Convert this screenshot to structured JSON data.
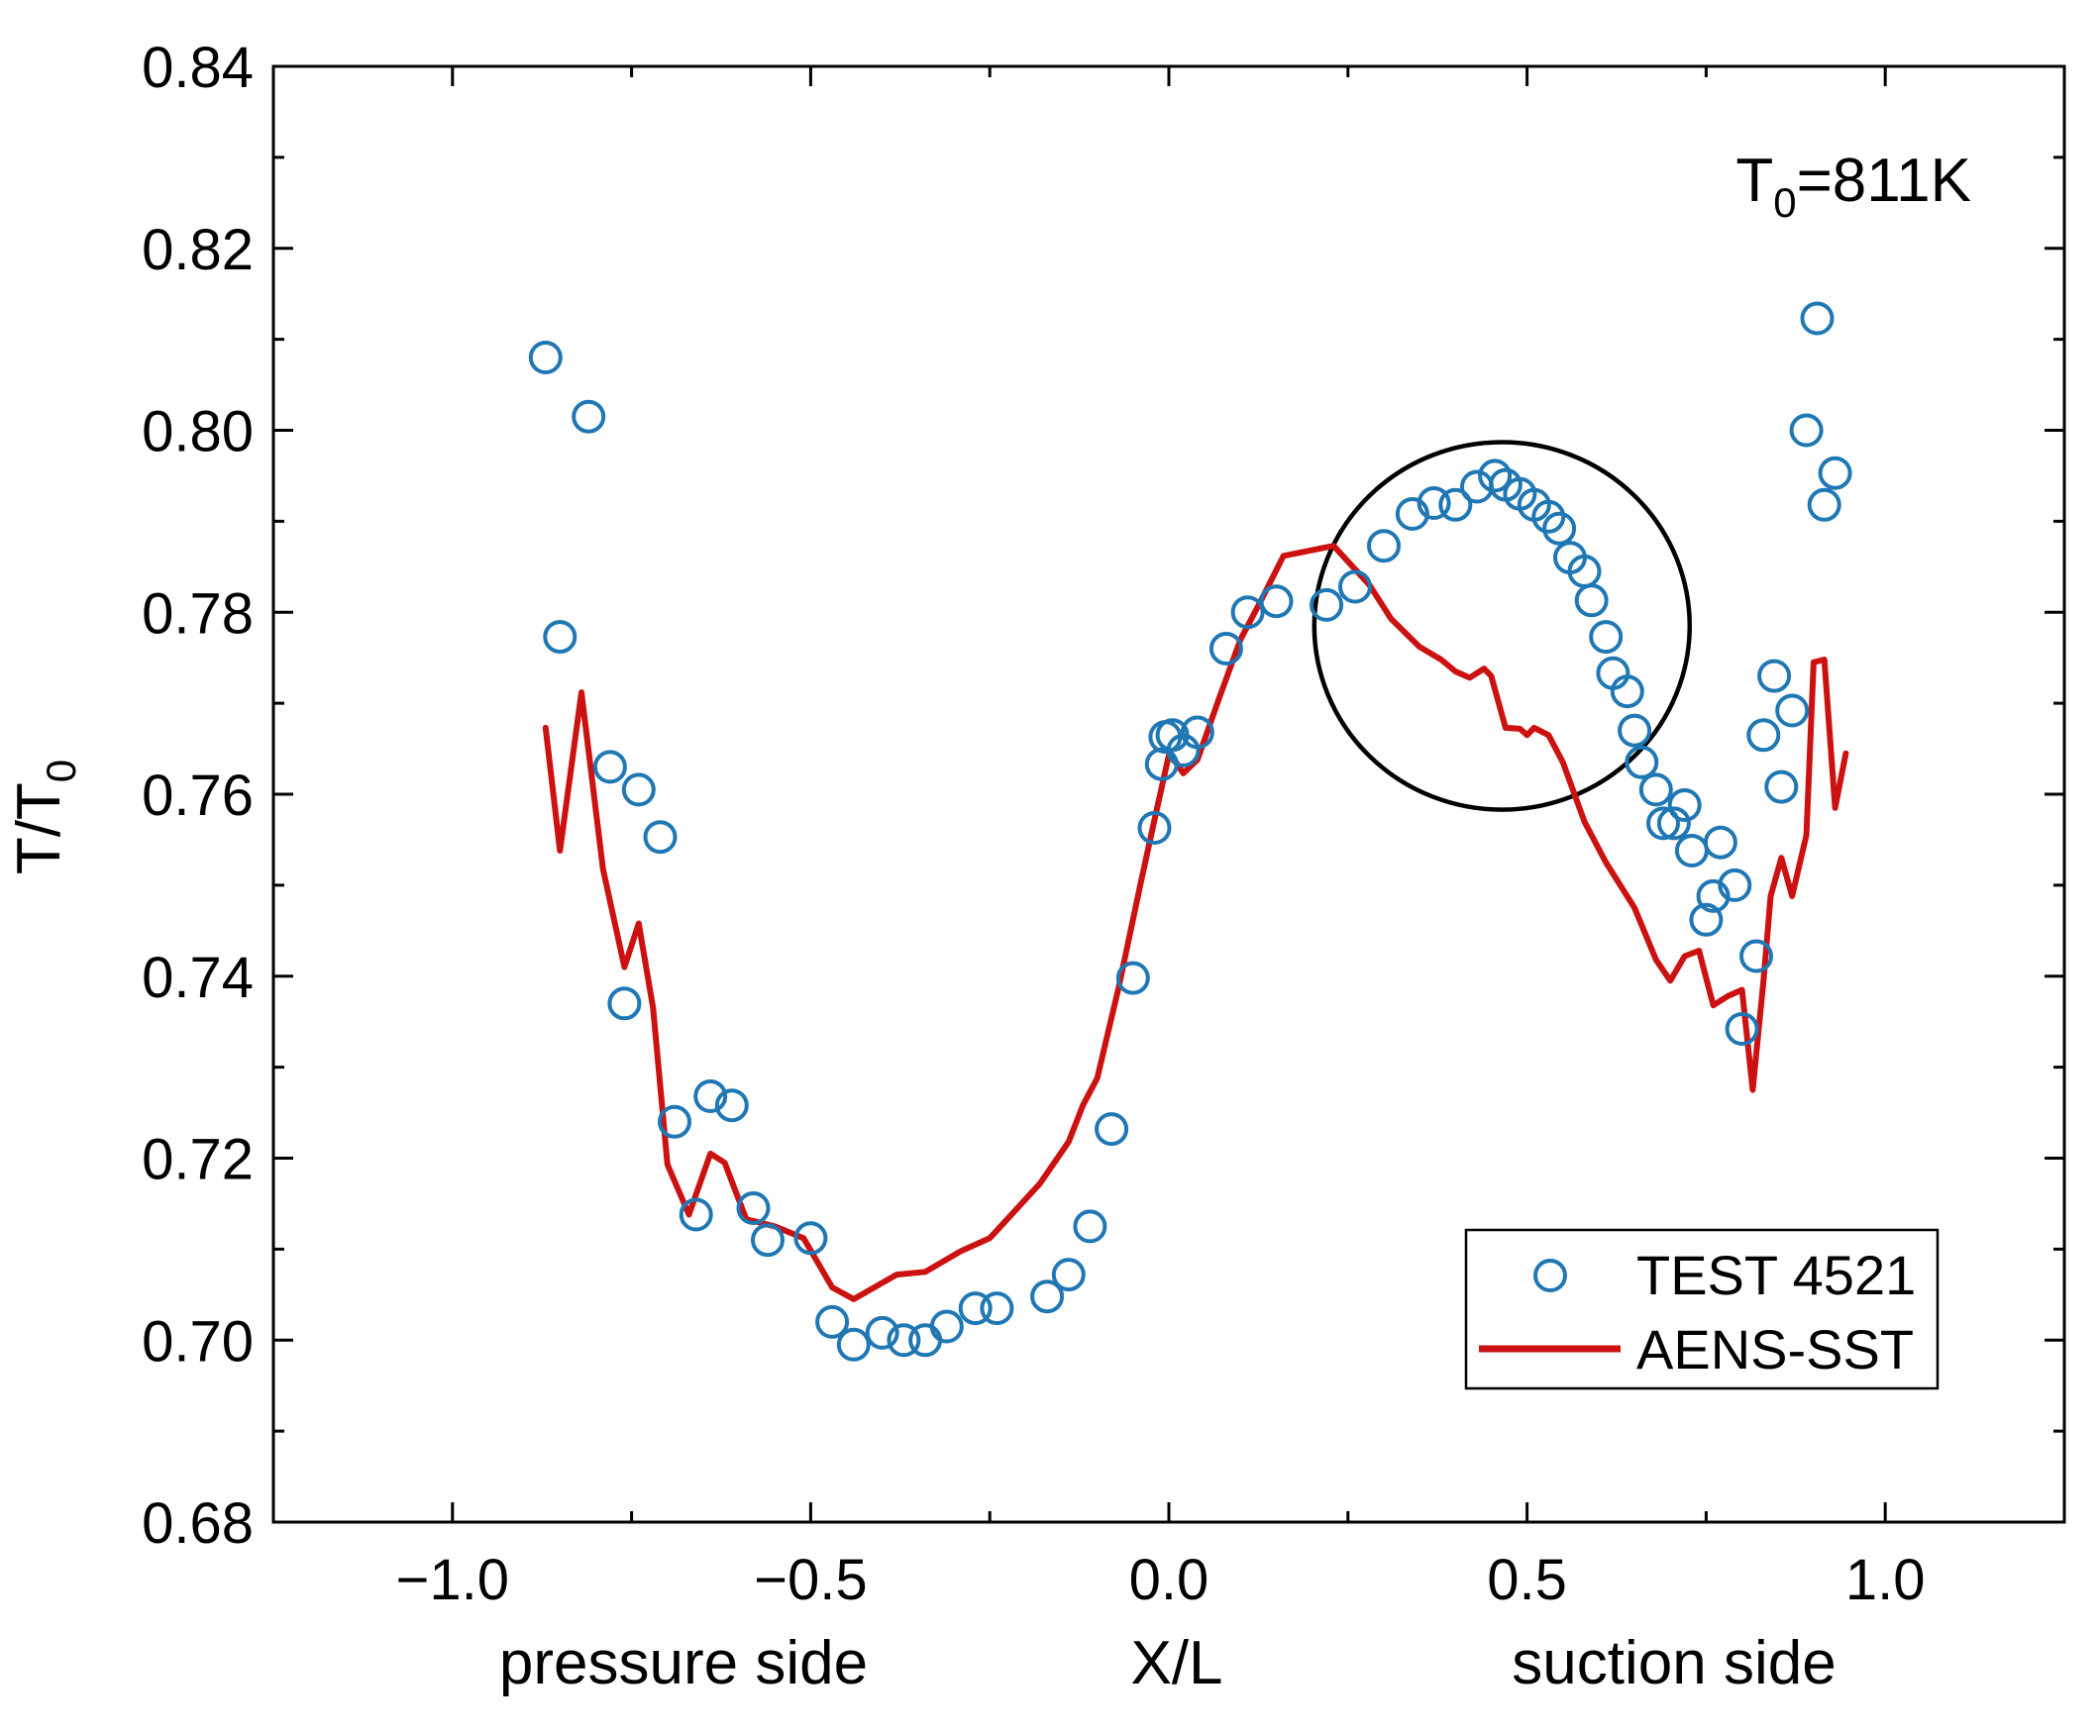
{
  "chart_data": {
    "type": "scatter",
    "title": "",
    "annotation": {
      "base": "T",
      "sub": "0",
      "rest": "=811K"
    },
    "ylabel": {
      "base": "T/T",
      "sub": "0"
    },
    "xlabel": "X/L",
    "xlabel_left": "pressure side",
    "xlabel_right": "suction side",
    "xlim": [
      -1.25,
      1.25
    ],
    "ylim": [
      0.68,
      0.84
    ],
    "xticks": [
      -1.0,
      -0.5,
      0.0,
      0.5,
      1.0
    ],
    "xtick_labels": [
      "−1.0",
      "−0.5",
      "0.0",
      "0.5",
      "1.0"
    ],
    "yticks": [
      0.68,
      0.7,
      0.72,
      0.74,
      0.76,
      0.78,
      0.8,
      0.82,
      0.84
    ],
    "ytick_labels": [
      "0.68",
      "0.70",
      "0.72",
      "0.74",
      "0.76",
      "0.78",
      "0.80",
      "0.82",
      "0.84"
    ],
    "legend_position": "bottom-right",
    "highlight_circle": {
      "cx": 0.465,
      "cy": 0.7785,
      "rx": 0.262,
      "ry": 0.0202
    },
    "series": [
      {
        "name": "TEST 4521",
        "kind": "markers",
        "color": "#1f77b4",
        "points": [
          [
            -0.87,
            0.808
          ],
          [
            -0.85,
            0.7773
          ],
          [
            -0.81,
            0.8015
          ],
          [
            -0.78,
            0.763
          ],
          [
            -0.74,
            0.7605
          ],
          [
            -0.71,
            0.7553
          ],
          [
            -0.76,
            0.737
          ],
          [
            -0.69,
            0.724
          ],
          [
            -0.64,
            0.7268
          ],
          [
            -0.61,
            0.7258
          ],
          [
            -0.66,
            0.7138
          ],
          [
            -0.58,
            0.7145
          ],
          [
            -0.56,
            0.711
          ],
          [
            -0.5,
            0.7112
          ],
          [
            -0.47,
            0.702
          ],
          [
            -0.44,
            0.6995
          ],
          [
            -0.4,
            0.7008
          ],
          [
            -0.37,
            0.7
          ],
          [
            -0.34,
            0.7
          ],
          [
            -0.31,
            0.7015
          ],
          [
            -0.27,
            0.7035
          ],
          [
            -0.24,
            0.7035
          ],
          [
            -0.17,
            0.7048
          ],
          [
            -0.14,
            0.7072
          ],
          [
            -0.11,
            0.7125
          ],
          [
            -0.08,
            0.7232
          ],
          [
            -0.05,
            0.7398
          ],
          [
            -0.02,
            0.7563
          ],
          [
            -0.01,
            0.7633
          ],
          [
            -0.005,
            0.7663
          ],
          [
            0.005,
            0.7665
          ],
          [
            0.02,
            0.7648
          ],
          [
            0.04,
            0.7668
          ],
          [
            0.08,
            0.776
          ],
          [
            0.11,
            0.78
          ],
          [
            0.15,
            0.7812
          ],
          [
            0.22,
            0.7808
          ],
          [
            0.26,
            0.7828
          ],
          [
            0.3,
            0.7873
          ],
          [
            0.34,
            0.7908
          ],
          [
            0.37,
            0.792
          ],
          [
            0.4,
            0.7918
          ],
          [
            0.43,
            0.7938
          ],
          [
            0.455,
            0.795
          ],
          [
            0.47,
            0.794
          ],
          [
            0.49,
            0.793
          ],
          [
            0.51,
            0.7918
          ],
          [
            0.53,
            0.7905
          ],
          [
            0.545,
            0.7892
          ],
          [
            0.56,
            0.786
          ],
          [
            0.58,
            0.7845
          ],
          [
            0.59,
            0.7813
          ],
          [
            0.61,
            0.7773
          ],
          [
            0.62,
            0.7733
          ],
          [
            0.64,
            0.7713
          ],
          [
            0.65,
            0.767
          ],
          [
            0.66,
            0.7635
          ],
          [
            0.68,
            0.7605
          ],
          [
            0.69,
            0.7568
          ],
          [
            0.705,
            0.7568
          ],
          [
            0.72,
            0.7588
          ],
          [
            0.73,
            0.7538
          ],
          [
            0.75,
            0.7462
          ],
          [
            0.76,
            0.7488
          ],
          [
            0.77,
            0.7547
          ],
          [
            0.79,
            0.75
          ],
          [
            0.8,
            0.7342
          ],
          [
            0.82,
            0.7422
          ],
          [
            0.83,
            0.7665
          ],
          [
            0.845,
            0.773
          ],
          [
            0.855,
            0.7608
          ],
          [
            0.87,
            0.7692
          ],
          [
            0.89,
            0.8
          ],
          [
            0.905,
            0.8123
          ],
          [
            0.915,
            0.7918
          ],
          [
            0.93,
            0.7953
          ]
        ]
      },
      {
        "name": "AENS-SST",
        "kind": "line",
        "color": "#cc1111",
        "points": [
          [
            -0.87,
            0.7673
          ],
          [
            -0.85,
            0.7538
          ],
          [
            -0.82,
            0.7712
          ],
          [
            -0.79,
            0.7518
          ],
          [
            -0.76,
            0.741
          ],
          [
            -0.74,
            0.7458
          ],
          [
            -0.72,
            0.7365
          ],
          [
            -0.7,
            0.7193
          ],
          [
            -0.67,
            0.7138
          ],
          [
            -0.64,
            0.7205
          ],
          [
            -0.62,
            0.7195
          ],
          [
            -0.59,
            0.7133
          ],
          [
            -0.55,
            0.7125
          ],
          [
            -0.51,
            0.7112
          ],
          [
            -0.47,
            0.7058
          ],
          [
            -0.44,
            0.7045
          ],
          [
            -0.38,
            0.7072
          ],
          [
            -0.34,
            0.7075
          ],
          [
            -0.29,
            0.7098
          ],
          [
            -0.25,
            0.7112
          ],
          [
            -0.18,
            0.7172
          ],
          [
            -0.14,
            0.7218
          ],
          [
            -0.12,
            0.7258
          ],
          [
            -0.1,
            0.7288
          ],
          [
            -0.07,
            0.7388
          ],
          [
            -0.04,
            0.75
          ],
          [
            -0.02,
            0.7572
          ],
          [
            0.0,
            0.7643
          ],
          [
            0.01,
            0.7635
          ],
          [
            0.02,
            0.7623
          ],
          [
            0.04,
            0.7638
          ],
          [
            0.07,
            0.7705
          ],
          [
            0.1,
            0.777
          ],
          [
            0.13,
            0.7815
          ],
          [
            0.16,
            0.7862
          ],
          [
            0.23,
            0.7873
          ],
          [
            0.28,
            0.783
          ],
          [
            0.31,
            0.7793
          ],
          [
            0.35,
            0.7762
          ],
          [
            0.38,
            0.7748
          ],
          [
            0.4,
            0.7735
          ],
          [
            0.42,
            0.7728
          ],
          [
            0.44,
            0.7738
          ],
          [
            0.45,
            0.773
          ],
          [
            0.47,
            0.7673
          ],
          [
            0.49,
            0.7672
          ],
          [
            0.5,
            0.7665
          ],
          [
            0.51,
            0.7673
          ],
          [
            0.53,
            0.7665
          ],
          [
            0.55,
            0.7635
          ],
          [
            0.58,
            0.757
          ],
          [
            0.61,
            0.7525
          ],
          [
            0.65,
            0.7475
          ],
          [
            0.68,
            0.7418
          ],
          [
            0.7,
            0.7395
          ],
          [
            0.72,
            0.7422
          ],
          [
            0.74,
            0.7428
          ],
          [
            0.76,
            0.7368
          ],
          [
            0.78,
            0.7378
          ],
          [
            0.8,
            0.7385
          ],
          [
            0.815,
            0.7275
          ],
          [
            0.83,
            0.7395
          ],
          [
            0.84,
            0.7488
          ],
          [
            0.855,
            0.753
          ],
          [
            0.87,
            0.7488
          ],
          [
            0.89,
            0.7555
          ],
          [
            0.9,
            0.7745
          ],
          [
            0.915,
            0.7748
          ],
          [
            0.93,
            0.7585
          ],
          [
            0.945,
            0.7645
          ]
        ]
      }
    ]
  }
}
